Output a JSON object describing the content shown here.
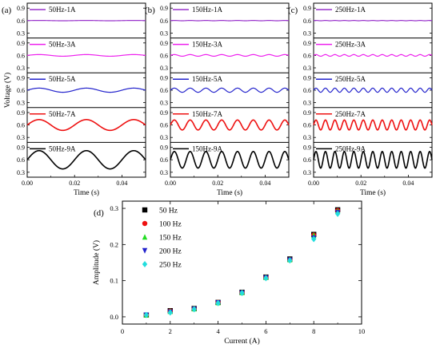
{
  "chart_data": [
    {
      "type": "line",
      "panel_label": "(a)",
      "xlabel": "Time (s)",
      "ylabel": "Voltage (V)",
      "x_ticks": [
        "0.00",
        "0.02",
        "0.04"
      ],
      "y_ticks": [
        "0.9",
        "0.6",
        "0.3"
      ],
      "xlim": [
        0,
        0.05
      ],
      "frequency_hz": 50,
      "series": [
        {
          "name": "50Hz-1A",
          "color": "#9933cc",
          "offset": 0.6,
          "amplitude": 0.004
        },
        {
          "name": "50Hz-3A",
          "color": "#ee22ee",
          "offset": 0.6,
          "amplitude": 0.02
        },
        {
          "name": "50Hz-5A",
          "color": "#2222cc",
          "offset": 0.6,
          "amplitude": 0.05
        },
        {
          "name": "50Hz-7A",
          "color": "#ee1111",
          "offset": 0.6,
          "amplitude": 0.13
        },
        {
          "name": "50Hz-9A",
          "color": "#000000",
          "offset": 0.6,
          "amplitude": 0.22
        }
      ]
    },
    {
      "type": "line",
      "panel_label": "(b)",
      "xlabel": "Time (s)",
      "ylabel": "",
      "x_ticks": [
        "0.00",
        "0.02",
        "0.04"
      ],
      "y_ticks": [
        "0.9",
        "0.6",
        "0.3"
      ],
      "xlim": [
        0,
        0.05
      ],
      "frequency_hz": 150,
      "series": [
        {
          "name": "150Hz-1A",
          "color": "#9933cc",
          "offset": 0.6,
          "amplitude": 0.004
        },
        {
          "name": "150Hz-3A",
          "color": "#ee22ee",
          "offset": 0.6,
          "amplitude": 0.02
        },
        {
          "name": "150Hz-5A",
          "color": "#2222cc",
          "offset": 0.6,
          "amplitude": 0.05
        },
        {
          "name": "150Hz-7A",
          "color": "#ee1111",
          "offset": 0.6,
          "amplitude": 0.12
        },
        {
          "name": "150Hz-9A",
          "color": "#000000",
          "offset": 0.6,
          "amplitude": 0.2
        }
      ]
    },
    {
      "type": "line",
      "panel_label": "(c)",
      "xlabel": "Time (s)",
      "ylabel": "",
      "x_ticks": [
        "0.00",
        "0.02",
        "0.04"
      ],
      "y_ticks": [
        "0.9",
        "0.6",
        "0.3"
      ],
      "xlim": [
        0,
        0.05
      ],
      "frequency_hz": 250,
      "series": [
        {
          "name": "250Hz-1A",
          "color": "#9933cc",
          "offset": 0.6,
          "amplitude": 0.004
        },
        {
          "name": "250Hz-3A",
          "color": "#ee22ee",
          "offset": 0.6,
          "amplitude": 0.02
        },
        {
          "name": "250Hz-5A",
          "color": "#2222cc",
          "offset": 0.6,
          "amplitude": 0.05
        },
        {
          "name": "250Hz-7A",
          "color": "#ee1111",
          "offset": 0.6,
          "amplitude": 0.12
        },
        {
          "name": "250Hz-9A",
          "color": "#000000",
          "offset": 0.6,
          "amplitude": 0.2
        }
      ]
    },
    {
      "type": "scatter",
      "panel_label": "(d)",
      "xlabel": "Current (A)",
      "ylabel": "Amplitude (V)",
      "xlim": [
        0,
        10
      ],
      "ylim": [
        -0.02,
        0.32
      ],
      "x_ticks": [
        0,
        2,
        4,
        6,
        8,
        10
      ],
      "y_ticks": [
        "0.0",
        "0.1",
        "0.2",
        "0.3"
      ],
      "legend_position": "top-left",
      "x": [
        1,
        2,
        3,
        4,
        5,
        6,
        7,
        8,
        9
      ],
      "series": [
        {
          "name": "50 Hz",
          "marker": "square",
          "color": "#000000",
          "values": [
            0.005,
            0.017,
            0.023,
            0.04,
            0.068,
            0.11,
            0.16,
            0.228,
            0.296
          ]
        },
        {
          "name": "100 Hz",
          "marker": "circle",
          "color": "#ee1111",
          "values": [
            0.005,
            0.016,
            0.022,
            0.04,
            0.067,
            0.109,
            0.158,
            0.226,
            0.294
          ]
        },
        {
          "name": "150 Hz",
          "marker": "triangle-up",
          "color": "#22dd22",
          "values": [
            0.005,
            0.015,
            0.022,
            0.039,
            0.067,
            0.109,
            0.158,
            0.225,
            0.292
          ]
        },
        {
          "name": "200 Hz",
          "marker": "triangle-down",
          "color": "#2222cc",
          "values": [
            0.005,
            0.013,
            0.021,
            0.039,
            0.066,
            0.108,
            0.157,
            0.218,
            0.288
          ]
        },
        {
          "name": "250 Hz",
          "marker": "diamond",
          "color": "#22dddd",
          "values": [
            0.005,
            0.012,
            0.021,
            0.038,
            0.066,
            0.107,
            0.156,
            0.215,
            0.285
          ]
        }
      ]
    }
  ]
}
